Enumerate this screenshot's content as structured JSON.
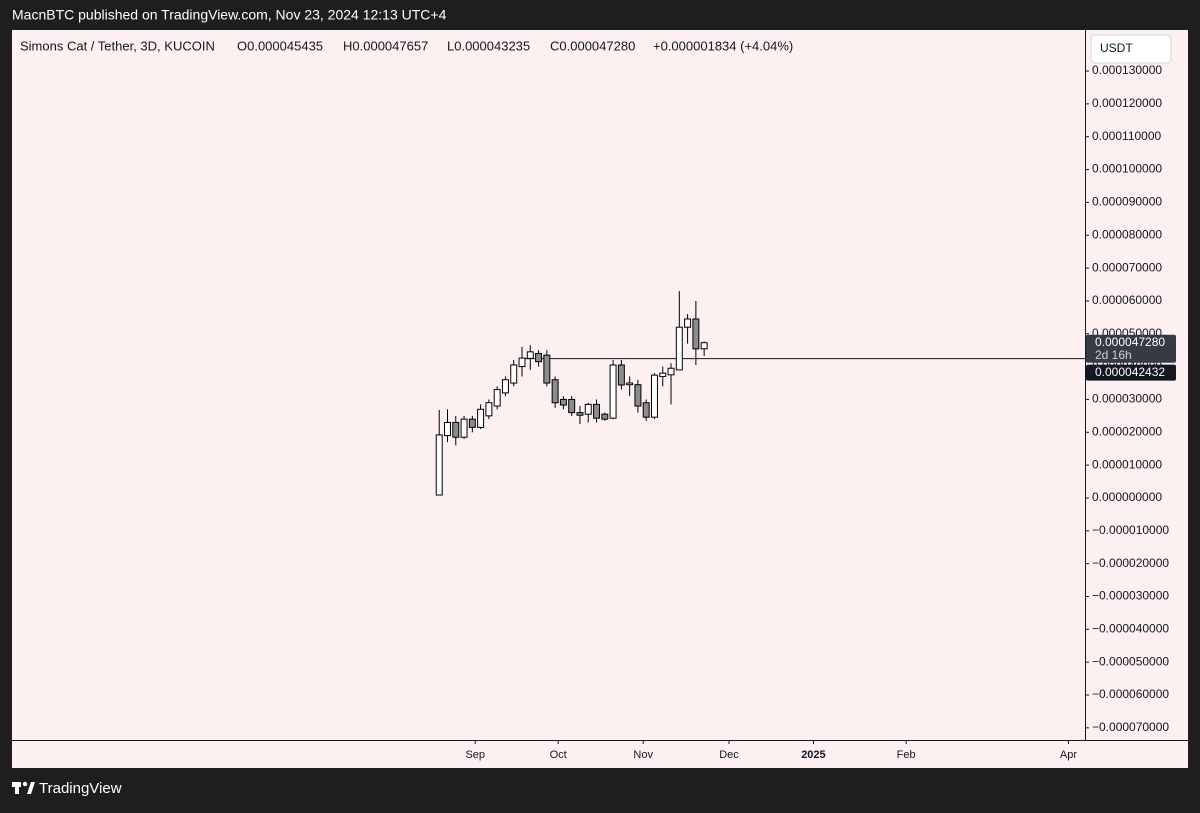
{
  "header": {
    "text": "MacnBTC published on TradingView.com, Nov 23, 2024 12:13 UTC+4"
  },
  "chart_data": {
    "type": "candlestick",
    "legend": {
      "symbol": "Simons Cat / Tether, 3D, KUCOIN",
      "open": "O0.000045435",
      "high": "H0.000047657",
      "low": "L0.000043235",
      "close": "C0.000047280",
      "change": "+0.000001834 (+4.04%)"
    },
    "currency": "USDT",
    "up_color": "#ffffff",
    "down_color": "#8c8c8c",
    "wick_color": "#000000",
    "x": [
      0,
      1,
      2,
      3,
      4,
      5,
      6,
      7,
      8,
      9,
      10,
      11,
      12,
      13,
      14,
      15,
      16,
      17,
      18,
      19,
      20,
      21,
      22,
      23,
      24,
      25,
      26,
      27,
      28,
      29,
      30,
      31,
      32
    ],
    "open": [
      9e-07,
      1.9e-05,
      2.3e-05,
      1.85e-05,
      2.4e-05,
      2.15e-05,
      2.5e-05,
      2.8e-05,
      3.2e-05,
      3.5e-05,
      4e-05,
      4.25e-05,
      4.4e-05,
      4.35e-05,
      3.6e-05,
      3e-05,
      3e-05,
      2.6e-05,
      2.55e-05,
      2.85e-05,
      2.55e-05,
      2.43e-05,
      4.05e-05,
      3.45e-05,
      3.45e-05,
      2.9e-05,
      2.46e-05,
      3.7e-05,
      3.75e-05,
      3.9e-05,
      5.2e-05,
      5.45e-05,
      4.5435e-05
    ],
    "high": [
      2.68e-05,
      2.7e-05,
      2.5e-05,
      2.5e-05,
      2.5e-05,
      2.85e-05,
      3e-05,
      3.4e-05,
      3.7e-05,
      4.2e-05,
      4.6e-05,
      4.65e-05,
      4.5e-05,
      4.5e-05,
      3.7e-05,
      3.1e-05,
      3.1e-05,
      2.8e-05,
      2.9e-05,
      3e-05,
      2.6e-05,
      4.2e-05,
      4.2e-05,
      3.7e-05,
      3.6e-05,
      3e-05,
      3.8e-05,
      4e-05,
      4.1e-05,
      6.3e-05,
      5.6e-05,
      6e-05,
      4.7657e-05
    ],
    "low": [
      9e-07,
      1.7e-05,
      1.6e-05,
      1.8e-05,
      2e-05,
      2.1e-05,
      2.4e-05,
      2.7e-05,
      3.1e-05,
      3.4e-05,
      3.7e-05,
      3.9e-05,
      4e-05,
      3.4e-05,
      2.75e-05,
      2.7e-05,
      2.5e-05,
      2.25e-05,
      2.3e-05,
      2.3e-05,
      2.35e-05,
      2.4e-05,
      3.3e-05,
      3.1e-05,
      2.6e-05,
      2.35e-05,
      2.4e-05,
      3.4e-05,
      2.85e-05,
      3.9e-05,
      4.7e-05,
      4.05e-05,
      4.3235e-05
    ],
    "close": [
      1.92e-05,
      2.3e-05,
      1.85e-05,
      2.4e-05,
      2.15e-05,
      2.7e-05,
      2.9e-05,
      3.3e-05,
      3.6e-05,
      4.05e-05,
      4.26e-05,
      4.45e-05,
      4.15e-05,
      3.5e-05,
      2.9e-05,
      2.83e-05,
      2.6e-05,
      2.52e-05,
      2.85e-05,
      2.43e-05,
      2.4e-05,
      4.05e-05,
      3.44e-05,
      3.5e-05,
      2.8e-05,
      2.46e-05,
      3.74e-05,
      3.8e-05,
      3.95e-05,
      5.2e-05,
      5.45e-05,
      4.54e-05,
      4.728e-05
    ],
    "xlim": [
      -51.6,
      78
    ],
    "xticks": [
      {
        "value": 4.35,
        "label": "Sep"
      },
      {
        "value": 14.37,
        "label": "Oct"
      },
      {
        "value": 24.64,
        "label": "Nov"
      },
      {
        "value": 35.0,
        "label": "Dec"
      },
      {
        "value": 45.2,
        "label": "2025",
        "bold": true
      },
      {
        "value": 56.4,
        "label": "Feb"
      },
      {
        "value": 76.0,
        "label": "Apr"
      }
    ],
    "ylim": [
      -7.37e-05,
      0.0001425
    ],
    "yticks": [
      {
        "value": 0.00013,
        "label": "0.000130000"
      },
      {
        "value": 0.00012,
        "label": "0.000120000"
      },
      {
        "value": 0.00011,
        "label": "0.000110000"
      },
      {
        "value": 0.0001,
        "label": "0.000100000"
      },
      {
        "value": 9e-05,
        "label": "0.000090000"
      },
      {
        "value": 8e-05,
        "label": "0.000080000"
      },
      {
        "value": 7e-05,
        "label": "0.000070000"
      },
      {
        "value": 6e-05,
        "label": "0.000060000"
      },
      {
        "value": 5e-05,
        "label": "0.000050000"
      },
      {
        "value": 4e-05,
        "label": "0.000040000"
      },
      {
        "value": 3e-05,
        "label": "0.000030000"
      },
      {
        "value": 2e-05,
        "label": "0.000020000"
      },
      {
        "value": 1e-05,
        "label": "0.000010000"
      },
      {
        "value": 0,
        "label": "0.000000000"
      },
      {
        "value": -1e-05,
        "label": "−0.000010000"
      },
      {
        "value": -2e-05,
        "label": "−0.000020000"
      },
      {
        "value": -3e-05,
        "label": "−0.000030000"
      },
      {
        "value": -4e-05,
        "label": "−0.000040000"
      },
      {
        "value": -5e-05,
        "label": "−0.000050000"
      },
      {
        "value": -6e-05,
        "label": "−0.000060000"
      },
      {
        "value": -7e-05,
        "label": "−0.000070000"
      }
    ],
    "hline": {
      "value": 4.2432e-05,
      "start_x": 9.7
    },
    "last_price": {
      "value": 4.728e-05,
      "label": "0.000047280",
      "countdown": "2d 16h"
    }
  },
  "footer": {
    "brand": "TradingView"
  }
}
